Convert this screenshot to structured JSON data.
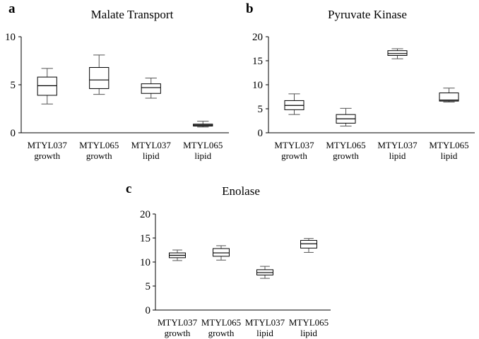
{
  "chart_data": [
    {
      "panel": "a",
      "type": "box",
      "title": "Malate Transport",
      "ylim": [
        0,
        10
      ],
      "yticks": [
        "0",
        "5",
        "10"
      ],
      "categories": [
        [
          "MTYL037",
          "growth"
        ],
        [
          "MTYL065",
          "growth"
        ],
        [
          "MTYL037",
          "lipid"
        ],
        [
          "MTYL065",
          "lipid"
        ]
      ],
      "boxes": [
        {
          "min": 3.0,
          "q1": 3.9,
          "median": 4.9,
          "q3": 5.8,
          "max": 6.7
        },
        {
          "min": 4.0,
          "q1": 4.6,
          "median": 5.5,
          "q3": 6.8,
          "max": 8.1
        },
        {
          "min": 3.6,
          "q1": 4.1,
          "median": 4.7,
          "q3": 5.1,
          "max": 5.7
        },
        {
          "min": 0.6,
          "q1": 0.7,
          "median": 0.8,
          "q3": 0.9,
          "max": 1.2
        }
      ]
    },
    {
      "panel": "b",
      "type": "box",
      "title": "Pyruvate Kinase",
      "ylim": [
        0,
        20
      ],
      "yticks": [
        "0",
        "5",
        "10",
        "15",
        "20"
      ],
      "categories": [
        [
          "MTYL037",
          "growth"
        ],
        [
          "MTYL065",
          "growth"
        ],
        [
          "MTYL037",
          "lipid"
        ],
        [
          "MTYL065",
          "lipid"
        ]
      ],
      "boxes": [
        {
          "min": 3.8,
          "q1": 4.8,
          "median": 5.7,
          "q3": 6.7,
          "max": 8.1
        },
        {
          "min": 1.4,
          "q1": 2.0,
          "median": 2.9,
          "q3": 3.8,
          "max": 5.1
        },
        {
          "min": 15.4,
          "q1": 16.1,
          "median": 16.5,
          "q3": 17.1,
          "max": 17.5
        },
        {
          "min": 6.4,
          "q1": 6.6,
          "median": 6.8,
          "q3": 8.3,
          "max": 9.3
        }
      ]
    },
    {
      "panel": "c",
      "type": "box",
      "title": "Enolase",
      "ylim": [
        0,
        20
      ],
      "yticks": [
        "0",
        "5",
        "10",
        "15",
        "20"
      ],
      "categories": [
        [
          "MTYL037",
          "growth"
        ],
        [
          "MTYL065",
          "growth"
        ],
        [
          "MTYL037",
          "lipid"
        ],
        [
          "MTYL065",
          "lipid"
        ]
      ],
      "boxes": [
        {
          "min": 10.3,
          "q1": 10.9,
          "median": 11.4,
          "q3": 11.9,
          "max": 12.5
        },
        {
          "min": 10.4,
          "q1": 11.2,
          "median": 11.9,
          "q3": 12.8,
          "max": 13.4
        },
        {
          "min": 6.6,
          "q1": 7.3,
          "median": 7.8,
          "q3": 8.4,
          "max": 9.1
        },
        {
          "min": 12.0,
          "q1": 12.9,
          "median": 13.8,
          "q3": 14.5,
          "max": 14.9
        }
      ]
    }
  ]
}
